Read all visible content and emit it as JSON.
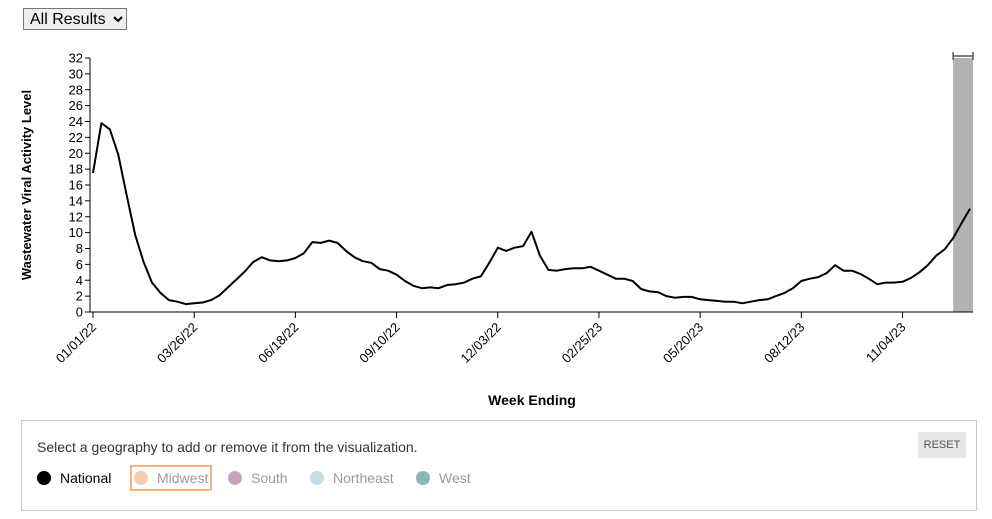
{
  "ui": {
    "filter": "All Results",
    "prompt": "Select a geography to add or remove it from the visualization.",
    "reset": "RESET",
    "geographies": [
      {
        "name": "Midwest",
        "color": "#f8cbad"
      },
      {
        "name": "South",
        "color": "#c6a4bd"
      },
      {
        "name": "Northeast",
        "color": "#c5dde5"
      },
      {
        "name": "West",
        "color": "#8bb5b8"
      }
    ]
  },
  "chart_data": {
    "type": "line",
    "x_label": "Week Ending",
    "y_label": "Wastewater Viral Activity Level",
    "ylim": [
      0,
      32
    ],
    "yticks": [
      0,
      2,
      4,
      6,
      8,
      10,
      12,
      14,
      16,
      18,
      20,
      22,
      24,
      26,
      28,
      30,
      32
    ],
    "xticks": [
      "01/01/22",
      "03/26/22",
      "06/18/22",
      "09/10/22",
      "12/03/22",
      "02/25/23",
      "05/20/23",
      "08/12/23",
      "11/04/23"
    ],
    "highlight_range": [
      "12/16/23",
      "12/30/23"
    ],
    "highlight_color": "#b3b3b3",
    "x": [
      "01/01/22",
      "01/08/22",
      "01/15/22",
      "01/22/22",
      "01/29/22",
      "02/05/22",
      "02/12/22",
      "02/19/22",
      "02/26/22",
      "03/05/22",
      "03/12/22",
      "03/19/22",
      "03/26/22",
      "04/02/22",
      "04/09/22",
      "04/16/22",
      "04/23/22",
      "04/30/22",
      "05/07/22",
      "05/14/22",
      "05/21/22",
      "05/28/22",
      "06/04/22",
      "06/11/22",
      "06/18/22",
      "06/25/22",
      "07/02/22",
      "07/09/22",
      "07/16/22",
      "07/23/22",
      "07/30/22",
      "08/06/22",
      "08/13/22",
      "08/20/22",
      "08/27/22",
      "09/03/22",
      "09/10/22",
      "09/17/22",
      "09/24/22",
      "10/01/22",
      "10/08/22",
      "10/15/22",
      "10/22/22",
      "10/29/22",
      "11/05/22",
      "11/12/22",
      "11/19/22",
      "11/26/22",
      "12/03/22",
      "12/10/22",
      "12/17/22",
      "12/24/22",
      "12/31/22",
      "01/07/23",
      "01/14/23",
      "01/21/23",
      "01/28/23",
      "02/04/23",
      "02/11/23",
      "02/18/23",
      "02/25/23",
      "03/04/23",
      "03/11/23",
      "03/18/23",
      "03/25/23",
      "04/01/23",
      "04/08/23",
      "04/15/23",
      "04/22/23",
      "04/29/23",
      "05/06/23",
      "05/13/23",
      "05/20/23",
      "05/27/23",
      "06/03/23",
      "06/10/23",
      "06/17/23",
      "06/24/23",
      "07/01/23",
      "07/08/23",
      "07/15/23",
      "07/22/23",
      "07/29/23",
      "08/05/23",
      "08/12/23",
      "08/19/23",
      "08/26/23",
      "09/02/23",
      "09/09/23",
      "09/16/23",
      "09/23/23",
      "09/30/23",
      "10/07/23",
      "10/14/23",
      "10/21/23",
      "10/28/23",
      "11/04/23",
      "11/11/23",
      "11/18/23",
      "11/25/23",
      "12/02/23",
      "12/09/23",
      "12/16/23",
      "12/23/23",
      "12/30/23"
    ],
    "series": [
      {
        "name": "National",
        "color": "#000000",
        "values": [
          17.5,
          23.8,
          23,
          19.8,
          14.7,
          9.7,
          6.3,
          3.7,
          2.4,
          1.5,
          1.3,
          1.0,
          1.1,
          1.2,
          1.5,
          2.1,
          3.1,
          4.1,
          5.1,
          6.3,
          6.9,
          6.5,
          6.4,
          6.5,
          6.8,
          7.4,
          8.8,
          8.7,
          9.0,
          8.7,
          7.7,
          6.9,
          6.4,
          6.2,
          5.4,
          5.2,
          4.7,
          3.9,
          3.3,
          3.0,
          3.1,
          3.0,
          3.4,
          3.5,
          3.7,
          4.2,
          4.5,
          6.2,
          8.1,
          7.7,
          8.1,
          8.3,
          10.1,
          7.1,
          5.3,
          5.2,
          5.4,
          5.5,
          5.5,
          5.7,
          5.2,
          4.7,
          4.2,
          4.2,
          3.9,
          2.9,
          2.6,
          2.5,
          2.0,
          1.8,
          1.9,
          1.9,
          1.6,
          1.5,
          1.4,
          1.3,
          1.3,
          1.1,
          1.3,
          1.5,
          1.6,
          2.0,
          2.4,
          3.0,
          3.9,
          4.2,
          4.4,
          4.9,
          5.9,
          5.2,
          5.2,
          4.8,
          4.2,
          3.5,
          3.7,
          3.7,
          3.8,
          4.3,
          5.0,
          5.9,
          7.1,
          7.9,
          9.3,
          11.2,
          13.0
        ]
      }
    ]
  }
}
